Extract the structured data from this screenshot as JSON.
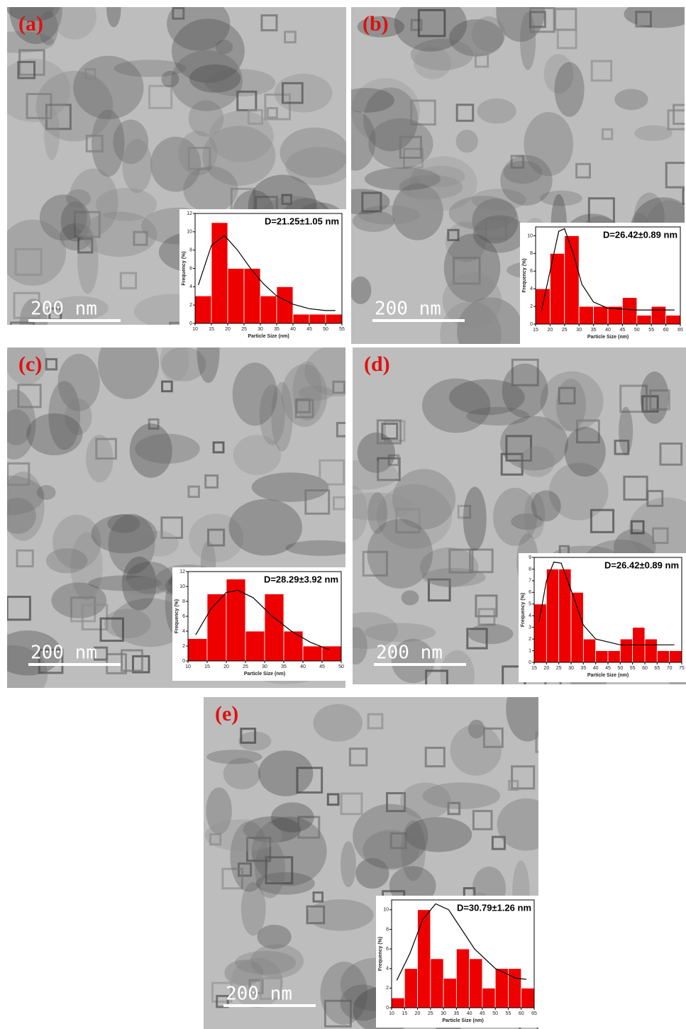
{
  "chart_data": [
    {
      "type": "histogram",
      "panel": "(a)",
      "scale_label": "200 nm",
      "annotation": "D=21.25±1.05 nm",
      "xlabel": "Particle Size (nm)",
      "ylabel": "Frequency (%)",
      "bins": [
        10,
        15,
        20,
        25,
        30,
        35,
        40,
        45,
        50,
        55
      ],
      "values": [
        3,
        11,
        6,
        6,
        3,
        4,
        1,
        1,
        1
      ],
      "color": "#ee0000",
      "xlim": [
        10,
        55
      ],
      "ylim": [
        0,
        12
      ],
      "xticks": [
        10,
        15,
        20,
        25,
        30,
        35,
        40,
        45,
        50,
        55
      ],
      "yticks": [
        0,
        2,
        4,
        6,
        8,
        10,
        12
      ],
      "fit": {
        "x": [
          11,
          15,
          19,
          23,
          27,
          31,
          35,
          40,
          45,
          50,
          53
        ],
        "y": [
          4.2,
          8.5,
          9.6,
          8,
          6,
          4.3,
          3,
          2.1,
          1.6,
          1.4,
          1.4
        ]
      }
    },
    {
      "type": "histogram",
      "panel": "(b)",
      "scale_label": "200 nm",
      "annotation": "D=26.42±0.89 nm",
      "xlabel": "Particle Size (nm)",
      "ylabel": "Frequency (%)",
      "bins": [
        15,
        20,
        25,
        30,
        35,
        40,
        45,
        50,
        55,
        60,
        65
      ],
      "values": [
        4,
        8,
        10,
        2,
        2,
        2,
        3,
        1,
        2,
        1
      ],
      "color": "#ee0000",
      "xlim": [
        15,
        65
      ],
      "ylim": [
        0,
        11
      ],
      "xticks": [
        15,
        20,
        25,
        30,
        35,
        40,
        45,
        50,
        55,
        60,
        65
      ],
      "yticks": [
        0,
        2,
        4,
        6,
        8,
        10
      ],
      "fit": {
        "x": [
          17,
          20,
          23,
          25,
          28,
          31,
          35,
          40,
          50,
          60,
          63
        ],
        "y": [
          1.5,
          6,
          10.5,
          10.8,
          8,
          4.5,
          2.5,
          1.8,
          1.6,
          1.6,
          1.6
        ]
      }
    },
    {
      "type": "histogram",
      "panel": "(c)",
      "scale_label": "200 nm",
      "annotation": "D=28.29±3.92 nm",
      "xlabel": "Particle Size (nm)",
      "ylabel": "Frequency (%)",
      "bins": [
        10,
        15,
        20,
        25,
        30,
        35,
        40,
        45,
        50
      ],
      "values": [
        3,
        9,
        11,
        4,
        9,
        4,
        2,
        2
      ],
      "color": "#ee0000",
      "xlim": [
        10,
        50
      ],
      "ylim": [
        0,
        12
      ],
      "xticks": [
        10,
        15,
        20,
        25,
        30,
        35,
        40,
        45,
        50
      ],
      "yticks": [
        0,
        2,
        4,
        6,
        8,
        10,
        12
      ],
      "fit": {
        "x": [
          12,
          16,
          20,
          23,
          27,
          32,
          37,
          42,
          47
        ],
        "y": [
          3.5,
          7,
          9.2,
          9.5,
          8.5,
          6,
          4,
          2.5,
          1.5
        ]
      }
    },
    {
      "type": "histogram",
      "panel": "(d)",
      "scale_label": "200 nm",
      "annotation": "D=26.42±0.89 nm",
      "xlabel": "Particle Size (nm)",
      "ylabel": "Frequency (%)",
      "bins": [
        15,
        20,
        25,
        30,
        35,
        40,
        45,
        50,
        55,
        60,
        65,
        70,
        75
      ],
      "values": [
        5,
        8,
        8,
        6,
        2,
        1,
        1,
        2,
        3,
        2,
        1,
        1
      ],
      "color": "#ee0000",
      "xlim": [
        15,
        75
      ],
      "ylim": [
        0,
        9
      ],
      "xticks": [
        15,
        20,
        25,
        30,
        35,
        40,
        45,
        50,
        55,
        60,
        65,
        70,
        75
      ],
      "yticks": [
        0,
        1,
        2,
        3,
        4,
        5,
        6,
        7,
        8,
        9
      ],
      "fit": {
        "x": [
          17,
          20,
          23,
          26,
          30,
          35,
          40,
          50,
          60,
          72
        ],
        "y": [
          3.5,
          7,
          8.6,
          8.5,
          6.2,
          3.2,
          2,
          1.5,
          1.5,
          1.5
        ]
      }
    },
    {
      "type": "histogram",
      "panel": "(e)",
      "scale_label": "200 nm",
      "annotation": "D=30.79±1.26 nm",
      "xlabel": "Particle Size (nm)",
      "ylabel": "Frequency (%)",
      "bins": [
        10,
        15,
        20,
        25,
        30,
        35,
        40,
        45,
        50,
        55,
        60,
        65
      ],
      "values": [
        1,
        4,
        10,
        5,
        3,
        6,
        5,
        2,
        4,
        4,
        2
      ],
      "color": "#ee0000",
      "xlim": [
        10,
        65
      ],
      "ylim": [
        0,
        11
      ],
      "xticks": [
        10,
        15,
        20,
        25,
        30,
        35,
        40,
        45,
        50,
        55,
        60,
        65
      ],
      "yticks": [
        0,
        2,
        4,
        6,
        8,
        10
      ],
      "fit": {
        "x": [
          12,
          17,
          22,
          27,
          32,
          37,
          42,
          50,
          58,
          62
        ],
        "y": [
          2.8,
          5.5,
          9,
          10.6,
          10,
          8,
          6,
          4,
          3,
          2.9
        ]
      }
    }
  ]
}
